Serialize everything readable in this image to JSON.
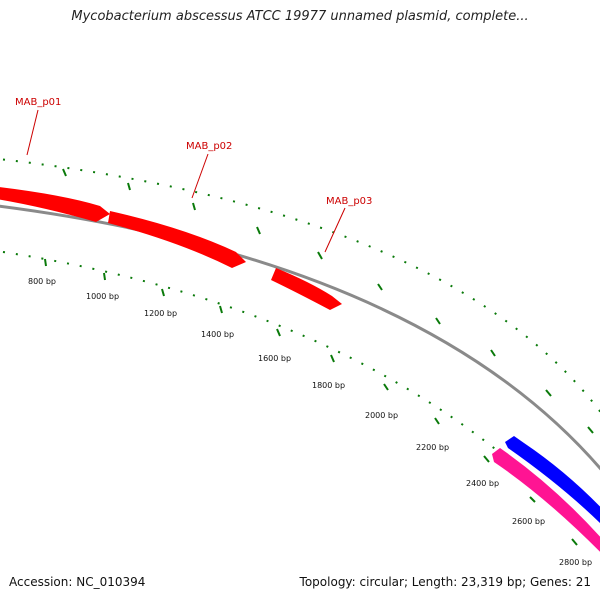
{
  "title": "Mycobacterium abscessus ATCC 19977 unnamed plasmid, complete...",
  "footer": {
    "accession": "Accession: NC_010394",
    "summary": "Topology: circular; Length: 23,319 bp; Genes: 21"
  },
  "colors": {
    "backbone": "#8a8a8a",
    "forward_gene": "#ff0000",
    "reverse_gene": "#0000ff",
    "other_gene": "#ff1493",
    "gene_label": "#cc0000",
    "tick": "#0a7a0a"
  },
  "gene_labels": [
    "MAB_p01",
    "MAB_p02",
    "MAB_p03"
  ],
  "tick_labels": [
    "800 bp",
    "1000 bp",
    "1200 bp",
    "1400 bp",
    "1600 bp",
    "1800 bp",
    "2000 bp",
    "2200 bp",
    "2400 bp",
    "2600 bp",
    "2800 bp"
  ]
}
